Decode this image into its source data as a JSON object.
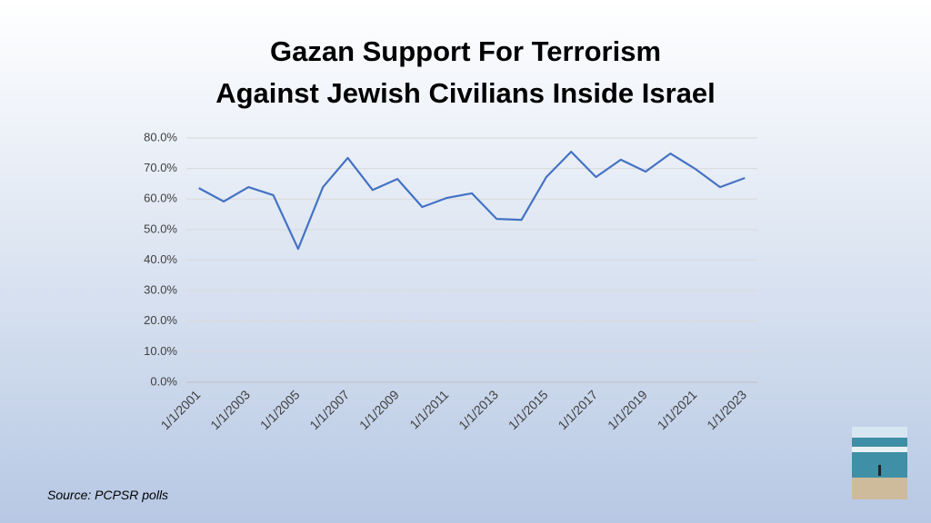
{
  "chart_data": {
    "type": "line",
    "title": "Gazan Support For Terrorism\nAgainst Jewish Civilians Inside Israel",
    "source": "Source: PCPSR polls",
    "categories": [
      "1/1/2001",
      null,
      "1/1/2003",
      null,
      "1/1/2005",
      null,
      "1/1/2007",
      null,
      "1/1/2009",
      null,
      "1/1/2011",
      null,
      "1/1/2013",
      null,
      "1/1/2015",
      null,
      "1/1/2017",
      null,
      "1/1/2019",
      null,
      "1/1/2021",
      null,
      "1/1/2023"
    ],
    "values": [
      63.6,
      59.2,
      63.9,
      61.3,
      43.7,
      63.9,
      73.5,
      63.0,
      66.6,
      57.4,
      60.4,
      61.9,
      53.5,
      53.2,
      67.2,
      75.5,
      67.2,
      72.9,
      69.0,
      74.9,
      69.9,
      63.9,
      66.9
    ],
    "color": "#4472c4",
    "ylim": [
      0,
      80
    ],
    "yticks": [
      {
        "value": 0,
        "label": "0.0%"
      },
      {
        "value": 10,
        "label": "10.0%"
      },
      {
        "value": 20,
        "label": "20.0%"
      },
      {
        "value": 30,
        "label": "30.0%"
      },
      {
        "value": 40,
        "label": "40.0%"
      },
      {
        "value": 50,
        "label": "50.0%"
      },
      {
        "value": 60,
        "label": "60.0%"
      },
      {
        "value": 70,
        "label": "70.0%"
      },
      {
        "value": 80,
        "label": "80.0%"
      }
    ],
    "grid": true
  }
}
